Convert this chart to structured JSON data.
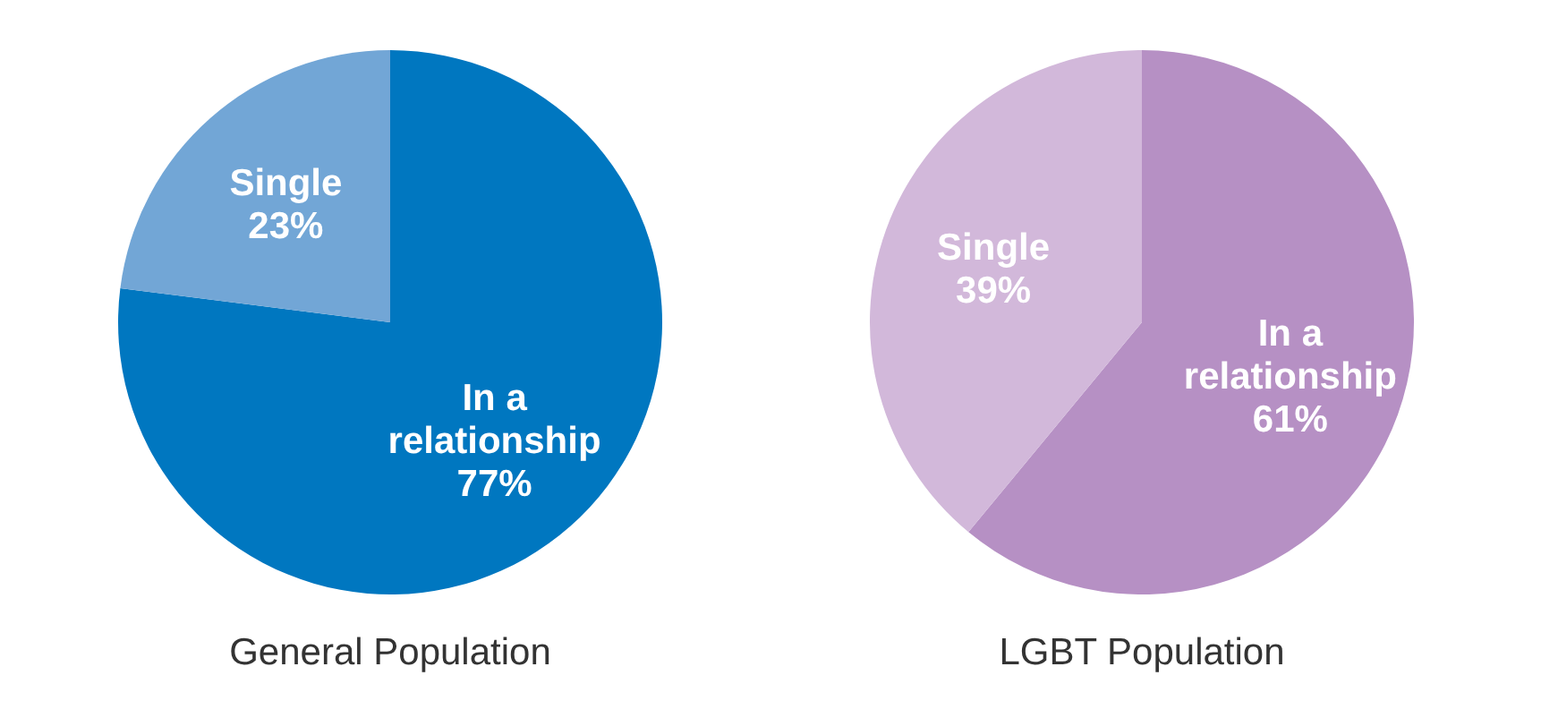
{
  "chart_data": [
    {
      "type": "pie",
      "title": "General Population",
      "categories": [
        "In a relationship",
        "Single"
      ],
      "values": [
        77,
        23
      ],
      "value_labels": [
        "77%",
        "23%"
      ],
      "colors": [
        "#0077c0",
        "#72a6d6"
      ]
    },
    {
      "type": "pie",
      "title": "LGBT Population",
      "categories": [
        "In a relationship",
        "Single"
      ],
      "values": [
        61,
        39
      ],
      "value_labels": [
        "61%",
        "39%"
      ],
      "colors": [
        "#b690c4",
        "#d2b8da"
      ]
    }
  ]
}
